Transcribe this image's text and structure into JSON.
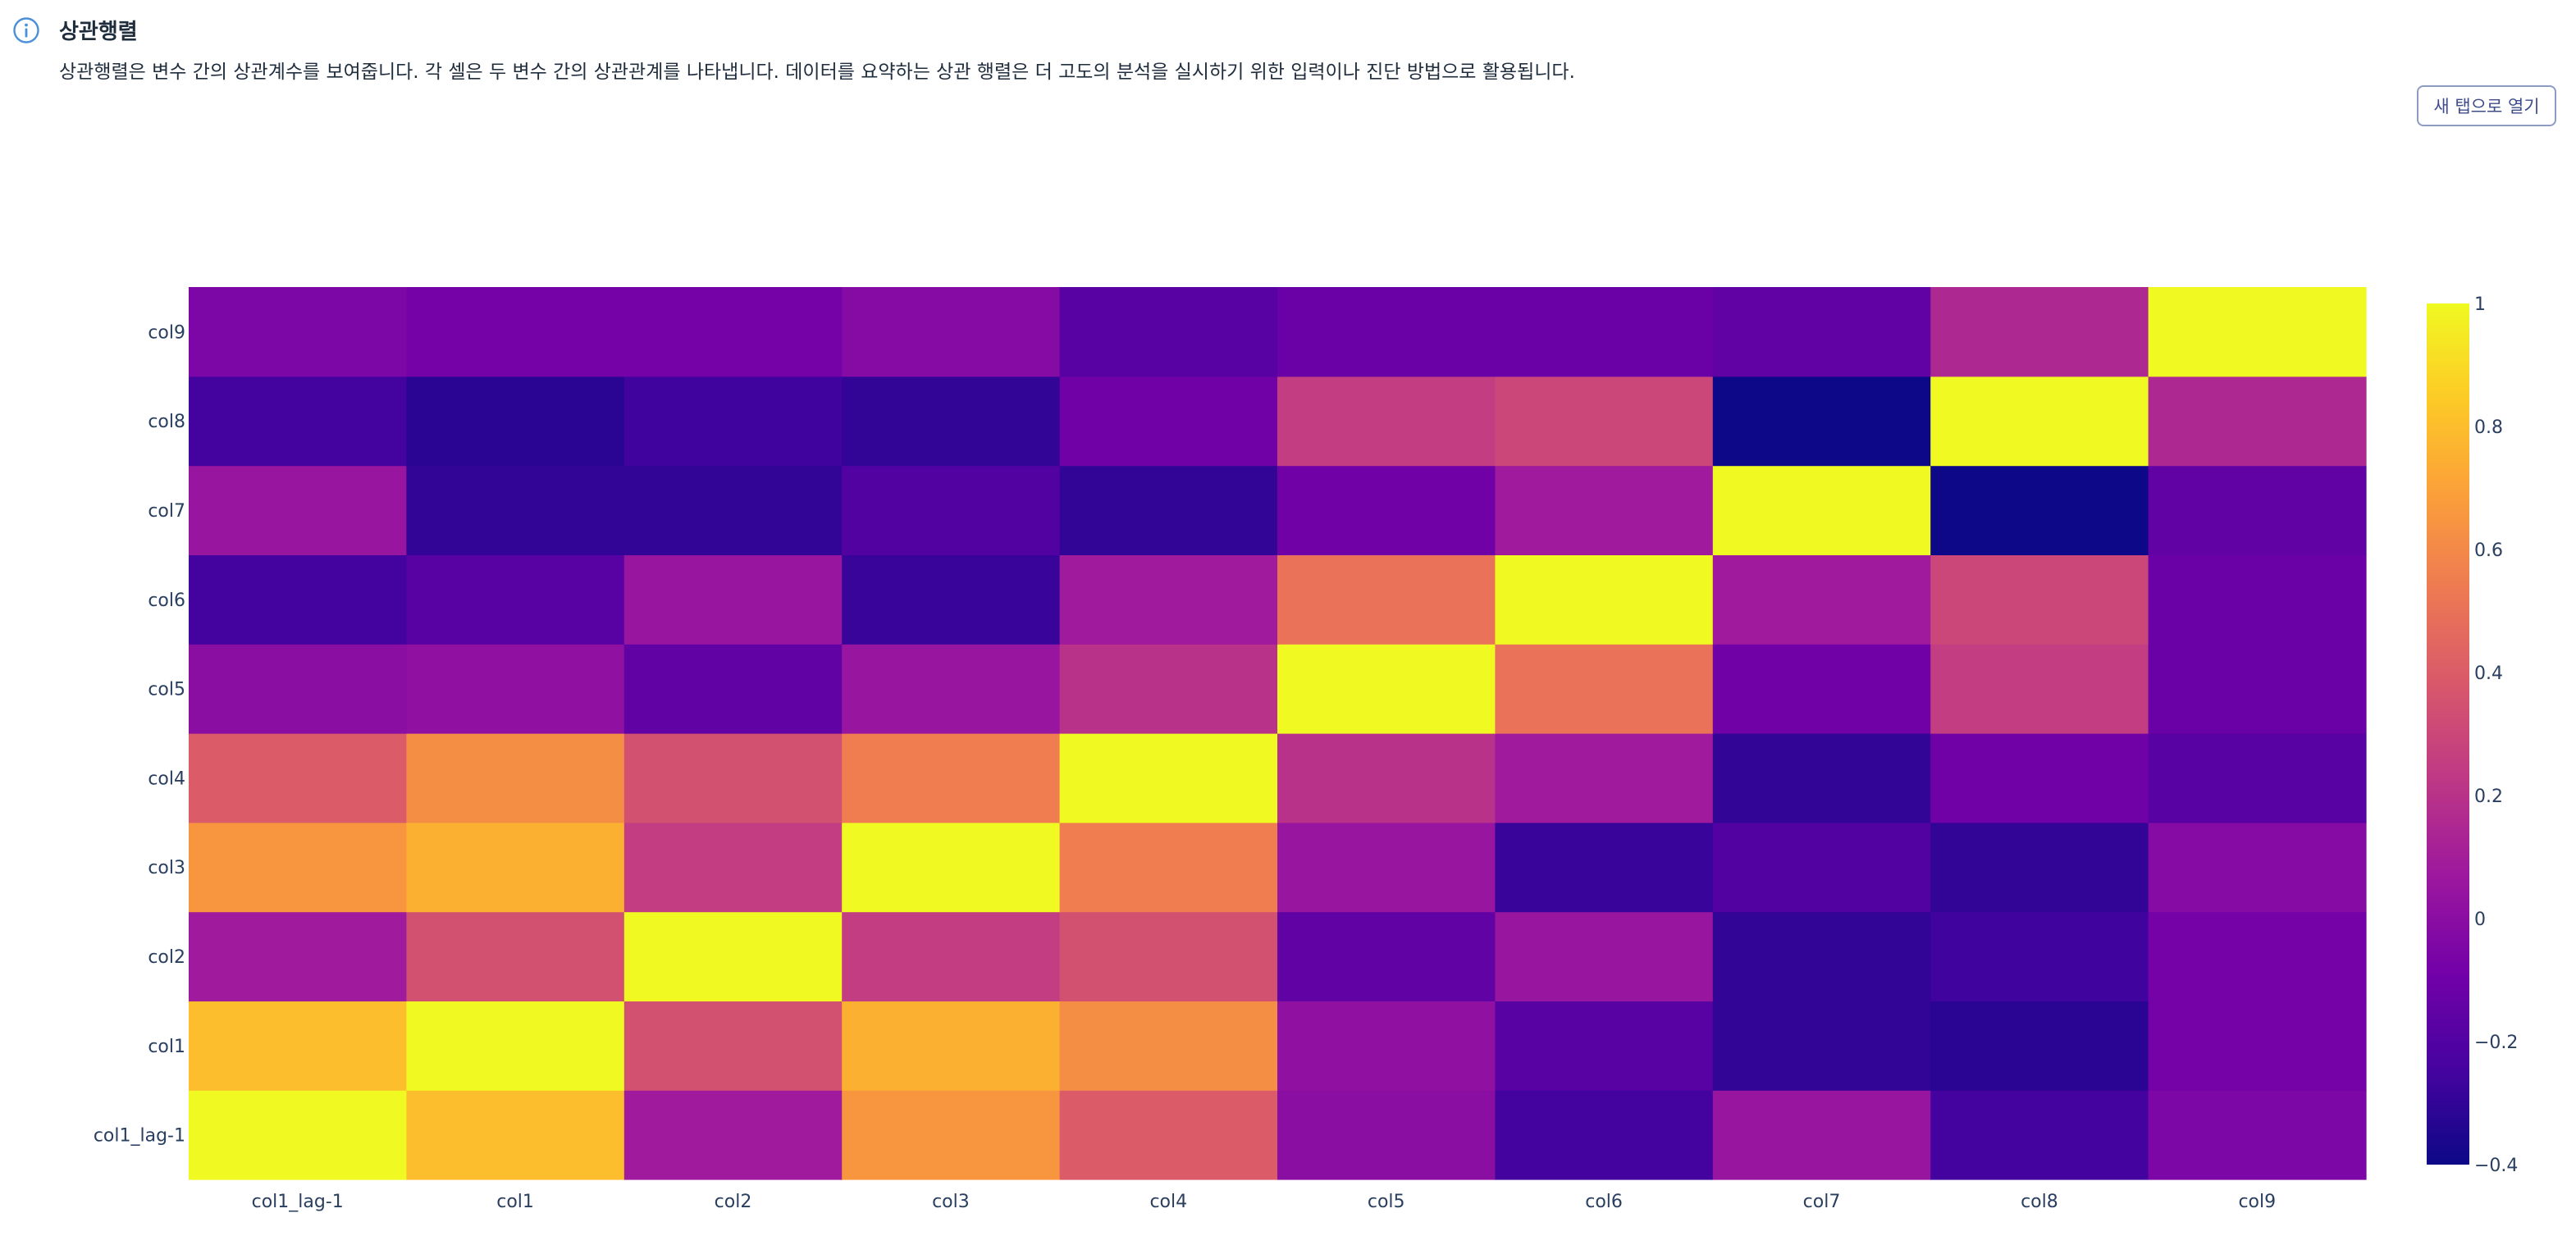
{
  "info": {
    "title": "상관행렬",
    "icon": "info-circle-icon",
    "description": "상관행렬은 변수 간의 상관계수를 보여줍니다. 각 셀은 두 변수 간의 상관관계를 나타냅니다. 데이터를 요약하는 상관 행렬은 더 고도의 분석을 실시하기 위한 입력이나 진단 방법으로 활용됩니다."
  },
  "toolbar": {
    "open_new_tab_label": "새 탭으로 열기"
  },
  "colors": {
    "accent": "#4a90d9",
    "scale": [
      "#0d0887",
      "#46039f",
      "#7201a8",
      "#9c179e",
      "#bd3786",
      "#d8576b",
      "#ed7953",
      "#fb9f3a",
      "#fdca26",
      "#f0f921"
    ]
  },
  "chart_data": {
    "type": "heatmap",
    "title": "",
    "xlabel": "",
    "ylabel": "",
    "x": [
      "col1_lag-1",
      "col1",
      "col2",
      "col3",
      "col4",
      "col5",
      "col6",
      "col7",
      "col8",
      "col9"
    ],
    "y": [
      "col1_lag-1",
      "col1",
      "col2",
      "col3",
      "col4",
      "col5",
      "col6",
      "col7",
      "col8",
      "col9"
    ],
    "z": [
      [
        1.0,
        0.8,
        0.08,
        0.65,
        0.4,
        0.0,
        -0.25,
        0.05,
        -0.25,
        -0.05
      ],
      [
        0.8,
        1.0,
        0.35,
        0.75,
        0.62,
        0.02,
        -0.18,
        -0.3,
        -0.32,
        -0.08
      ],
      [
        0.08,
        0.35,
        1.0,
        0.25,
        0.35,
        -0.15,
        0.05,
        -0.3,
        -0.26,
        -0.08
      ],
      [
        0.65,
        0.75,
        0.25,
        1.0,
        0.55,
        0.05,
        -0.28,
        -0.2,
        -0.3,
        -0.02
      ],
      [
        0.4,
        0.62,
        0.35,
        0.55,
        1.0,
        0.2,
        0.08,
        -0.3,
        -0.1,
        -0.18
      ],
      [
        0.0,
        0.02,
        -0.15,
        0.05,
        0.2,
        1.0,
        0.5,
        -0.1,
        0.25,
        -0.12
      ],
      [
        -0.25,
        -0.18,
        0.05,
        -0.28,
        0.08,
        0.5,
        1.0,
        0.08,
        0.3,
        -0.12
      ],
      [
        0.05,
        -0.3,
        -0.3,
        -0.2,
        -0.3,
        -0.1,
        0.08,
        1.0,
        -0.45,
        -0.15
      ],
      [
        -0.25,
        -0.32,
        -0.26,
        -0.3,
        -0.1,
        0.25,
        0.3,
        -0.45,
        1.0,
        0.15
      ],
      [
        -0.05,
        -0.08,
        -0.08,
        -0.02,
        -0.18,
        -0.12,
        -0.12,
        -0.15,
        0.15,
        1.0
      ]
    ],
    "zmin": -0.4,
    "zmax": 1.0,
    "colorbar_ticks": [
      -0.4,
      -0.2,
      0,
      0.2,
      0.4,
      0.6,
      0.8,
      1
    ],
    "colorbar_tick_labels": [
      "−0.4",
      "−0.2",
      "0",
      "0.2",
      "0.4",
      "0.6",
      "0.8",
      "1"
    ],
    "colorscale": "plasma",
    "grid": false,
    "legend": "colorbar-right"
  }
}
